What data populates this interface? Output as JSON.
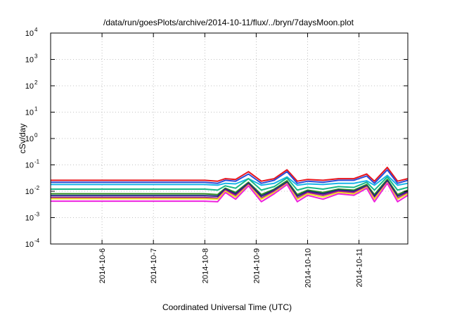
{
  "chart_data": {
    "type": "line",
    "title": "/data/run/goesPlots/archive/2014-10-11/flux/../bryn/7daysMoon.plot",
    "xlabel": "Coordinated Universal Time (UTC)",
    "ylabel": "cSv/day",
    "x_tick_labels": [
      "2014-10-6",
      "2014-10-7",
      "2014-10-8",
      "2014-10-9",
      "2014-10-10",
      "2014-10-11"
    ],
    "x_range_days": [
      5.0,
      11.95
    ],
    "y_scale": "log",
    "ylim": [
      0.0001,
      10000
    ],
    "y_tick_exponents": [
      "-4",
      "-3",
      "-2",
      "-1",
      "0",
      "1",
      "2",
      "3",
      "4"
    ],
    "grid": true,
    "series": [
      {
        "color": "#e8141c",
        "values": [
          [
            5.0,
            0.026
          ],
          [
            8.0,
            0.026
          ],
          [
            8.25,
            0.024
          ],
          [
            8.4,
            0.03
          ],
          [
            8.6,
            0.028
          ],
          [
            8.85,
            0.055
          ],
          [
            9.1,
            0.024
          ],
          [
            9.35,
            0.03
          ],
          [
            9.6,
            0.065
          ],
          [
            9.8,
            0.024
          ],
          [
            10.0,
            0.028
          ],
          [
            10.3,
            0.026
          ],
          [
            10.6,
            0.03
          ],
          [
            10.9,
            0.03
          ],
          [
            11.15,
            0.045
          ],
          [
            11.3,
            0.024
          ],
          [
            11.55,
            0.08
          ],
          [
            11.75,
            0.024
          ],
          [
            11.95,
            0.03
          ]
        ]
      },
      {
        "color": "#2a4bd8",
        "values": [
          [
            5.0,
            0.022
          ],
          [
            8.0,
            0.022
          ],
          [
            8.25,
            0.02
          ],
          [
            8.4,
            0.026
          ],
          [
            8.6,
            0.024
          ],
          [
            8.85,
            0.045
          ],
          [
            9.1,
            0.02
          ],
          [
            9.35,
            0.026
          ],
          [
            9.6,
            0.055
          ],
          [
            9.8,
            0.02
          ],
          [
            10.0,
            0.024
          ],
          [
            10.3,
            0.022
          ],
          [
            10.6,
            0.026
          ],
          [
            10.9,
            0.026
          ],
          [
            11.15,
            0.038
          ],
          [
            11.3,
            0.02
          ],
          [
            11.55,
            0.065
          ],
          [
            11.75,
            0.02
          ],
          [
            11.95,
            0.026
          ]
        ]
      },
      {
        "color": "#1ab4e8",
        "values": [
          [
            5.0,
            0.018
          ],
          [
            8.0,
            0.018
          ],
          [
            8.25,
            0.017
          ],
          [
            8.4,
            0.02
          ],
          [
            8.6,
            0.019
          ],
          [
            8.85,
            0.03
          ],
          [
            9.1,
            0.017
          ],
          [
            9.35,
            0.02
          ],
          [
            9.6,
            0.035
          ],
          [
            9.8,
            0.017
          ],
          [
            10.0,
            0.019
          ],
          [
            10.3,
            0.018
          ],
          [
            10.6,
            0.02
          ],
          [
            10.9,
            0.02
          ],
          [
            11.15,
            0.025
          ],
          [
            11.3,
            0.017
          ],
          [
            11.55,
            0.04
          ],
          [
            11.75,
            0.017
          ],
          [
            11.95,
            0.02
          ]
        ]
      },
      {
        "color": "#18b888",
        "values": [
          [
            5.0,
            0.012
          ],
          [
            8.0,
            0.012
          ],
          [
            8.25,
            0.011
          ],
          [
            8.4,
            0.016
          ],
          [
            8.6,
            0.013
          ],
          [
            8.85,
            0.03
          ],
          [
            9.1,
            0.011
          ],
          [
            9.35,
            0.015
          ],
          [
            9.6,
            0.032
          ],
          [
            9.8,
            0.011
          ],
          [
            10.0,
            0.014
          ],
          [
            10.3,
            0.012
          ],
          [
            10.6,
            0.015
          ],
          [
            10.9,
            0.014
          ],
          [
            11.15,
            0.022
          ],
          [
            11.3,
            0.011
          ],
          [
            11.55,
            0.035
          ],
          [
            11.75,
            0.011
          ],
          [
            11.95,
            0.014
          ]
        ]
      },
      {
        "color": "#2e8b22",
        "values": [
          [
            5.0,
            0.008
          ],
          [
            8.0,
            0.008
          ],
          [
            8.25,
            0.0075
          ],
          [
            8.4,
            0.013
          ],
          [
            8.6,
            0.009
          ],
          [
            8.85,
            0.022
          ],
          [
            9.1,
            0.0075
          ],
          [
            9.35,
            0.012
          ],
          [
            9.6,
            0.025
          ],
          [
            9.8,
            0.0075
          ],
          [
            10.0,
            0.011
          ],
          [
            10.3,
            0.009
          ],
          [
            10.6,
            0.012
          ],
          [
            10.9,
            0.011
          ],
          [
            11.15,
            0.018
          ],
          [
            11.3,
            0.0075
          ],
          [
            11.55,
            0.028
          ],
          [
            11.75,
            0.0075
          ],
          [
            11.95,
            0.011
          ]
        ]
      },
      {
        "color": "#202080",
        "values": [
          [
            5.0,
            0.0068
          ],
          [
            8.0,
            0.0068
          ],
          [
            8.25,
            0.0065
          ],
          [
            8.4,
            0.012
          ],
          [
            8.6,
            0.008
          ],
          [
            8.85,
            0.02
          ],
          [
            9.1,
            0.0065
          ],
          [
            9.35,
            0.011
          ],
          [
            9.6,
            0.022
          ],
          [
            9.8,
            0.0065
          ],
          [
            10.0,
            0.01
          ],
          [
            10.3,
            0.008
          ],
          [
            10.6,
            0.011
          ],
          [
            10.9,
            0.01
          ],
          [
            11.15,
            0.016
          ],
          [
            11.3,
            0.0065
          ],
          [
            11.55,
            0.025
          ],
          [
            11.75,
            0.0065
          ],
          [
            11.95,
            0.01
          ]
        ]
      },
      {
        "color": "#a01890",
        "values": [
          [
            5.0,
            0.0058
          ],
          [
            8.0,
            0.0058
          ],
          [
            8.25,
            0.0055
          ],
          [
            8.4,
            0.011
          ],
          [
            8.6,
            0.007
          ],
          [
            8.85,
            0.018
          ],
          [
            9.1,
            0.0055
          ],
          [
            9.35,
            0.01
          ],
          [
            9.6,
            0.02
          ],
          [
            9.8,
            0.0055
          ],
          [
            10.0,
            0.009
          ],
          [
            10.3,
            0.007
          ],
          [
            10.6,
            0.01
          ],
          [
            10.9,
            0.009
          ],
          [
            11.15,
            0.015
          ],
          [
            11.3,
            0.0055
          ],
          [
            11.55,
            0.022
          ],
          [
            11.75,
            0.0055
          ],
          [
            11.95,
            0.009
          ]
        ]
      },
      {
        "color": "#f0e020",
        "values": [
          [
            5.0,
            0.0052
          ],
          [
            8.0,
            0.0052
          ],
          [
            8.25,
            0.005
          ],
          [
            8.4,
            0.01
          ],
          [
            8.6,
            0.006
          ],
          [
            8.85,
            0.017
          ],
          [
            9.1,
            0.005
          ],
          [
            9.35,
            0.009
          ],
          [
            9.6,
            0.019
          ],
          [
            9.8,
            0.005
          ],
          [
            10.0,
            0.008
          ],
          [
            10.3,
            0.006
          ],
          [
            10.6,
            0.009
          ],
          [
            10.9,
            0.008
          ],
          [
            11.15,
            0.014
          ],
          [
            11.3,
            0.005
          ],
          [
            11.55,
            0.021
          ],
          [
            11.75,
            0.005
          ],
          [
            11.95,
            0.008
          ]
        ]
      },
      {
        "color": "#ee22dd",
        "values": [
          [
            5.0,
            0.0042
          ],
          [
            8.0,
            0.0042
          ],
          [
            8.25,
            0.004
          ],
          [
            8.4,
            0.009
          ],
          [
            8.6,
            0.005
          ],
          [
            8.85,
            0.016
          ],
          [
            9.1,
            0.004
          ],
          [
            9.35,
            0.008
          ],
          [
            9.6,
            0.018
          ],
          [
            9.8,
            0.004
          ],
          [
            10.0,
            0.007
          ],
          [
            10.3,
            0.005
          ],
          [
            10.6,
            0.008
          ],
          [
            10.9,
            0.007
          ],
          [
            11.15,
            0.013
          ],
          [
            11.3,
            0.004
          ],
          [
            11.55,
            0.02
          ],
          [
            11.75,
            0.004
          ],
          [
            11.95,
            0.007
          ]
        ]
      }
    ]
  }
}
